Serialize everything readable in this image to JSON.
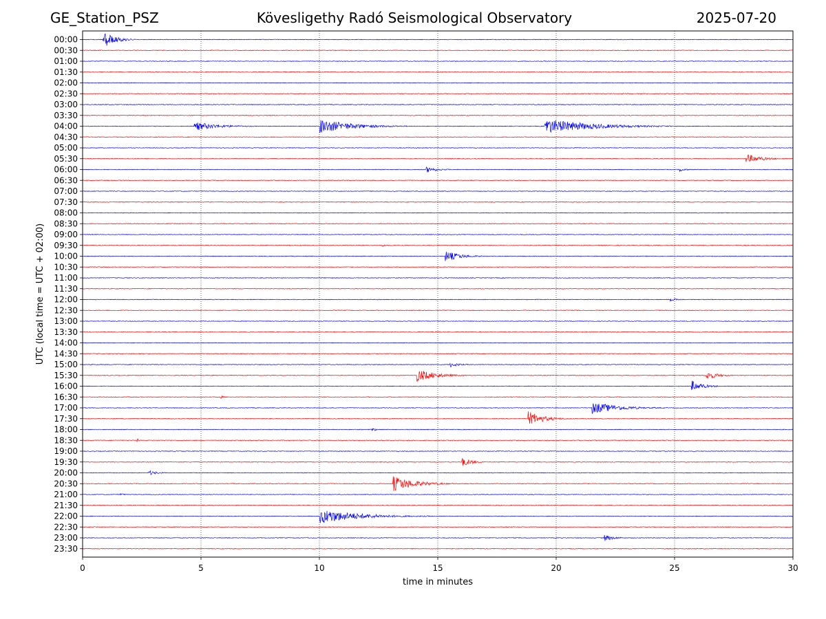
{
  "header": {
    "station": "GE_Station_PSZ",
    "observatory": "Kövesligethy Radó Seismological Observatory",
    "date": "2025-07-20"
  },
  "chart_data": {
    "type": "line",
    "title": "Kövesligethy Radó Seismological Observatory",
    "xlabel": "time in minutes",
    "ylabel": "UTC (local time = UTC + 02:00)",
    "xlim": [
      0,
      30
    ],
    "xticks": [
      0,
      5,
      10,
      15,
      20,
      25,
      30
    ],
    "grid_x": [
      5,
      10,
      15,
      20,
      25
    ],
    "row_labels": [
      "00:00",
      "00:30",
      "01:00",
      "01:30",
      "02:00",
      "02:30",
      "03:00",
      "03:30",
      "04:00",
      "04:30",
      "05:00",
      "05:30",
      "06:00",
      "06:30",
      "07:00",
      "07:30",
      "08:00",
      "08:30",
      "09:00",
      "09:30",
      "10:00",
      "10:30",
      "11:00",
      "11:30",
      "12:00",
      "12:30",
      "13:00",
      "13:30",
      "14:00",
      "14:30",
      "15:00",
      "15:30",
      "16:00",
      "16:30",
      "17:00",
      "17:30",
      "18:00",
      "18:30",
      "19:00",
      "19:30",
      "20:00",
      "20:30",
      "21:00",
      "21:30",
      "22:00",
      "22:30",
      "23:00",
      "23:30"
    ],
    "colors": {
      "even_rows": "#0000ff",
      "odd_rows": "#ff0000",
      "grid": "#000000"
    },
    "events": [
      {
        "row": "00:00",
        "start": 0.85,
        "duration": 1.4,
        "amplitude": 0.9,
        "kind": "spike"
      },
      {
        "row": "04:00",
        "start": 10.0,
        "duration": 4.2,
        "amplitude": 0.9
      },
      {
        "row": "04:00",
        "start": 19.5,
        "duration": 6.0,
        "amplitude": 0.95
      },
      {
        "row": "04:00",
        "start": 4.7,
        "duration": 3.2,
        "amplitude": 0.55
      },
      {
        "row": "05:30",
        "start": 28.0,
        "duration": 2.0,
        "amplitude": 0.6
      },
      {
        "row": "06:00",
        "start": 14.5,
        "duration": 1.5,
        "amplitude": 0.4
      },
      {
        "row": "06:00",
        "start": 25.2,
        "duration": 0.8,
        "amplitude": 0.3
      },
      {
        "row": "09:30",
        "start": 12.6,
        "duration": 0.6,
        "amplitude": 0.25
      },
      {
        "row": "10:00",
        "start": 15.3,
        "duration": 2.0,
        "amplitude": 0.7
      },
      {
        "row": "12:00",
        "start": 24.8,
        "duration": 0.8,
        "amplitude": 0.25
      },
      {
        "row": "15:00",
        "start": 15.5,
        "duration": 1.2,
        "amplitude": 0.35
      },
      {
        "row": "15:30",
        "start": 14.1,
        "duration": 2.5,
        "amplitude": 0.8
      },
      {
        "row": "15:30",
        "start": 26.3,
        "duration": 1.5,
        "amplitude": 0.6
      },
      {
        "row": "16:00",
        "start": 25.7,
        "duration": 1.5,
        "amplitude": 0.7
      },
      {
        "row": "16:30",
        "start": 5.8,
        "duration": 0.6,
        "amplitude": 0.2
      },
      {
        "row": "17:00",
        "start": 21.5,
        "duration": 3.5,
        "amplitude": 0.75
      },
      {
        "row": "17:30",
        "start": 18.8,
        "duration": 2.0,
        "amplitude": 0.95
      },
      {
        "row": "18:00",
        "start": 12.2,
        "duration": 0.6,
        "amplitude": 0.3
      },
      {
        "row": "18:30",
        "start": 2.3,
        "duration": 0.4,
        "amplitude": 0.2
      },
      {
        "row": "19:30",
        "start": 16.0,
        "duration": 1.5,
        "amplitude": 0.55
      },
      {
        "row": "20:00",
        "start": 2.8,
        "duration": 1.2,
        "amplitude": 0.3
      },
      {
        "row": "20:30",
        "start": 13.1,
        "duration": 3.0,
        "amplitude": 0.95
      },
      {
        "row": "21:00",
        "start": 1.6,
        "duration": 0.5,
        "amplitude": 0.2
      },
      {
        "row": "22:00",
        "start": 10.0,
        "duration": 5.0,
        "amplitude": 0.95
      },
      {
        "row": "23:00",
        "start": 22.0,
        "duration": 1.3,
        "amplitude": 0.45
      }
    ]
  }
}
